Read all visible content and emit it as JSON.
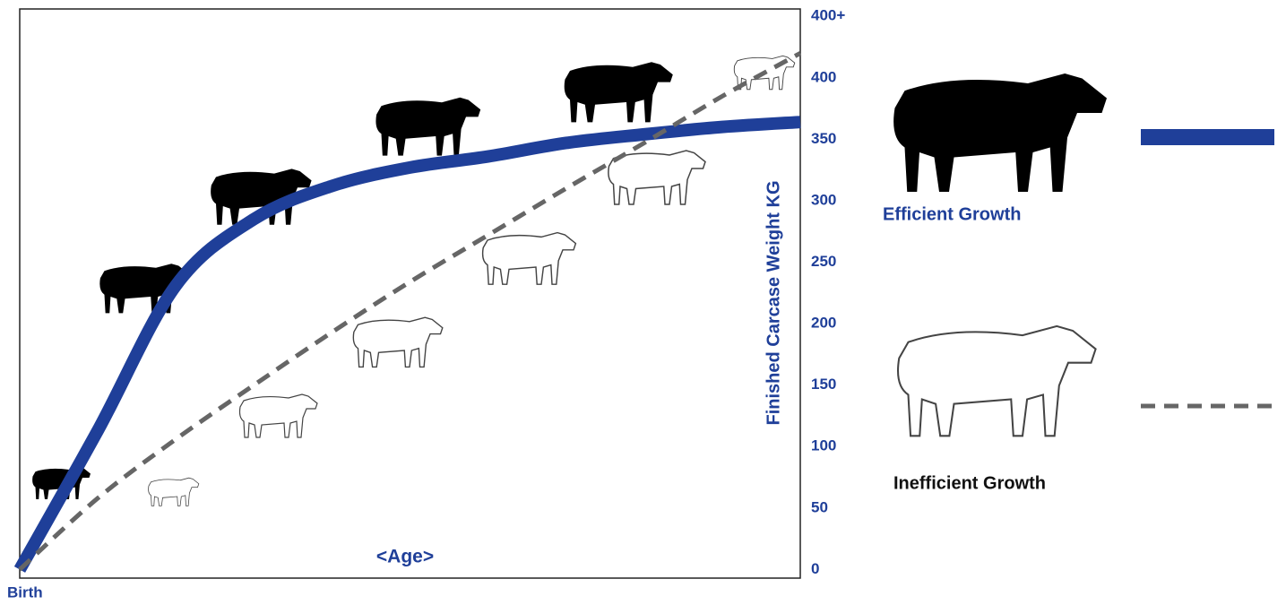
{
  "chart_data": {
    "type": "line",
    "x_label": "<Age>",
    "x_start_label": "Birth",
    "y_label": "Finished Carcase Weight KG",
    "categories": [
      null,
      null,
      null,
      null,
      null,
      null,
      null,
      null,
      null,
      null,
      null
    ],
    "series": [
      {
        "name": "Efficient Growth",
        "color": "#1f3f99",
        "style": "solid",
        "values": [
          0,
          113,
          231,
          285,
          312,
          327,
          336,
          347,
          354,
          360,
          364
        ]
      },
      {
        "name": "Inefficient Growth",
        "color": "#666666",
        "style": "dashed",
        "values": [
          0,
          58,
          106,
          150,
          193,
          234,
          272,
          310,
          347,
          385,
          420
        ]
      }
    ],
    "ylim": [
      -7,
      456
    ],
    "yticks": [
      0,
      50,
      100,
      150,
      200,
      250,
      300,
      350,
      400,
      {
        "value": 450,
        "label": "400+"
      }
    ],
    "grid": false
  }
}
